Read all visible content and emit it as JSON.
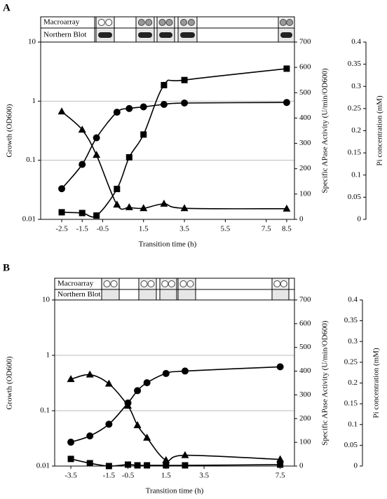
{
  "chart_data": [
    {
      "type": "line",
      "panel_label": "A",
      "x_label": "Transition time (h)",
      "y_label": "Growth (OD600)",
      "y2_label": "Specific APase Activity (U/min/OD600)",
      "y3_label": "Pi concentration (mM)",
      "strip_labels": [
        "Macroarray",
        "Northern Blot"
      ],
      "log_y": true,
      "grid": true,
      "xlim": [
        -3.53,
        8.88
      ],
      "xticks": [
        -2.5,
        -1.5,
        -0.5,
        1.5,
        3.5,
        5.5,
        7.5,
        8.5
      ],
      "ylim": [
        0.01,
        10
      ],
      "yticks": [
        0.01,
        0.1,
        1,
        10
      ],
      "y2lim": [
        0,
        700
      ],
      "y2ticks": [
        0,
        100,
        200,
        300,
        400,
        500,
        600,
        700
      ],
      "y3lim": [
        0,
        0.4
      ],
      "y3ticks": [
        0,
        0.05,
        0.1,
        0.15,
        0.2,
        0.25,
        0.3,
        0.35,
        0.4
      ],
      "series": [
        {
          "marker": "circle",
          "color": "#000000",
          "x": [
            -2.5,
            -1.5,
            -0.8,
            0.2,
            0.8,
            1.5,
            2.5,
            3.5,
            8.5
          ],
          "values": [
            0.033,
            0.085,
            0.24,
            0.65,
            0.75,
            0.8,
            0.88,
            0.93,
            0.95
          ]
        },
        {
          "marker": "square",
          "color": "#000000",
          "axis": "y2",
          "x": [
            -2.5,
            -1.5,
            -0.8,
            0.2,
            0.8,
            1.5,
            2.5,
            3.5,
            8.5
          ],
          "values": [
            28,
            25,
            15,
            120,
            245,
            335,
            530,
            550,
            595
          ]
        },
        {
          "marker": "triangle",
          "color": "#000000",
          "axis": "y3",
          "x": [
            -2.5,
            -1.5,
            -0.8,
            0.2,
            0.8,
            1.5,
            2.5,
            3.5,
            8.5
          ],
          "values": [
            0.243,
            0.202,
            0.145,
            0.033,
            0.027,
            0.025,
            0.035,
            0.025,
            0.024
          ]
        }
      ]
    },
    {
      "type": "line",
      "panel_label": "B",
      "x_label": "Transition time (h)",
      "y_label": "Growth (OD600)",
      "y2_label": "Specific APase Activity (U/min/OD600)",
      "y3_label": "Pi concentration (mM)",
      "strip_labels": [
        "Macroarray",
        "Northern Blot"
      ],
      "log_y": true,
      "grid": true,
      "xlim": [
        -4.35,
        8.25
      ],
      "xticks": [
        -3.5,
        -1.5,
        -0.5,
        1.5,
        3.5,
        7.5
      ],
      "ylim": [
        0.01,
        10
      ],
      "yticks": [
        0.01,
        0.1,
        1,
        10
      ],
      "y2lim": [
        0,
        700
      ],
      "y2ticks": [
        0,
        100,
        200,
        300,
        400,
        500,
        600,
        700
      ],
      "y3lim": [
        0,
        0.4
      ],
      "y3ticks": [
        0,
        0.05,
        0.1,
        0.15,
        0.2,
        0.25,
        0.3,
        0.35,
        0.4
      ],
      "series": [
        {
          "marker": "circle",
          "color": "#000000",
          "x": [
            -3.5,
            -2.5,
            -1.5,
            -0.5,
            0,
            0.5,
            1.5,
            2.5,
            7.5
          ],
          "values": [
            0.027,
            0.035,
            0.057,
            0.138,
            0.23,
            0.32,
            0.47,
            0.52,
            0.62
          ]
        },
        {
          "marker": "square",
          "color": "#000000",
          "axis": "y2",
          "x": [
            -3.5,
            -2.5,
            -1.5,
            -0.5,
            0,
            0.5,
            1.5,
            2.5,
            7.5
          ],
          "values": [
            30,
            12,
            0,
            6,
            3,
            3,
            3,
            3,
            6
          ]
        },
        {
          "marker": "triangle",
          "color": "#000000",
          "axis": "y3",
          "x": [
            -3.5,
            -2.5,
            -1.5,
            -0.5,
            0,
            0.5,
            1.5,
            2.5,
            7.5
          ],
          "values": [
            0.209,
            0.22,
            0.198,
            0.145,
            0.098,
            0.068,
            0.014,
            0.026,
            0.016
          ]
        }
      ]
    }
  ]
}
